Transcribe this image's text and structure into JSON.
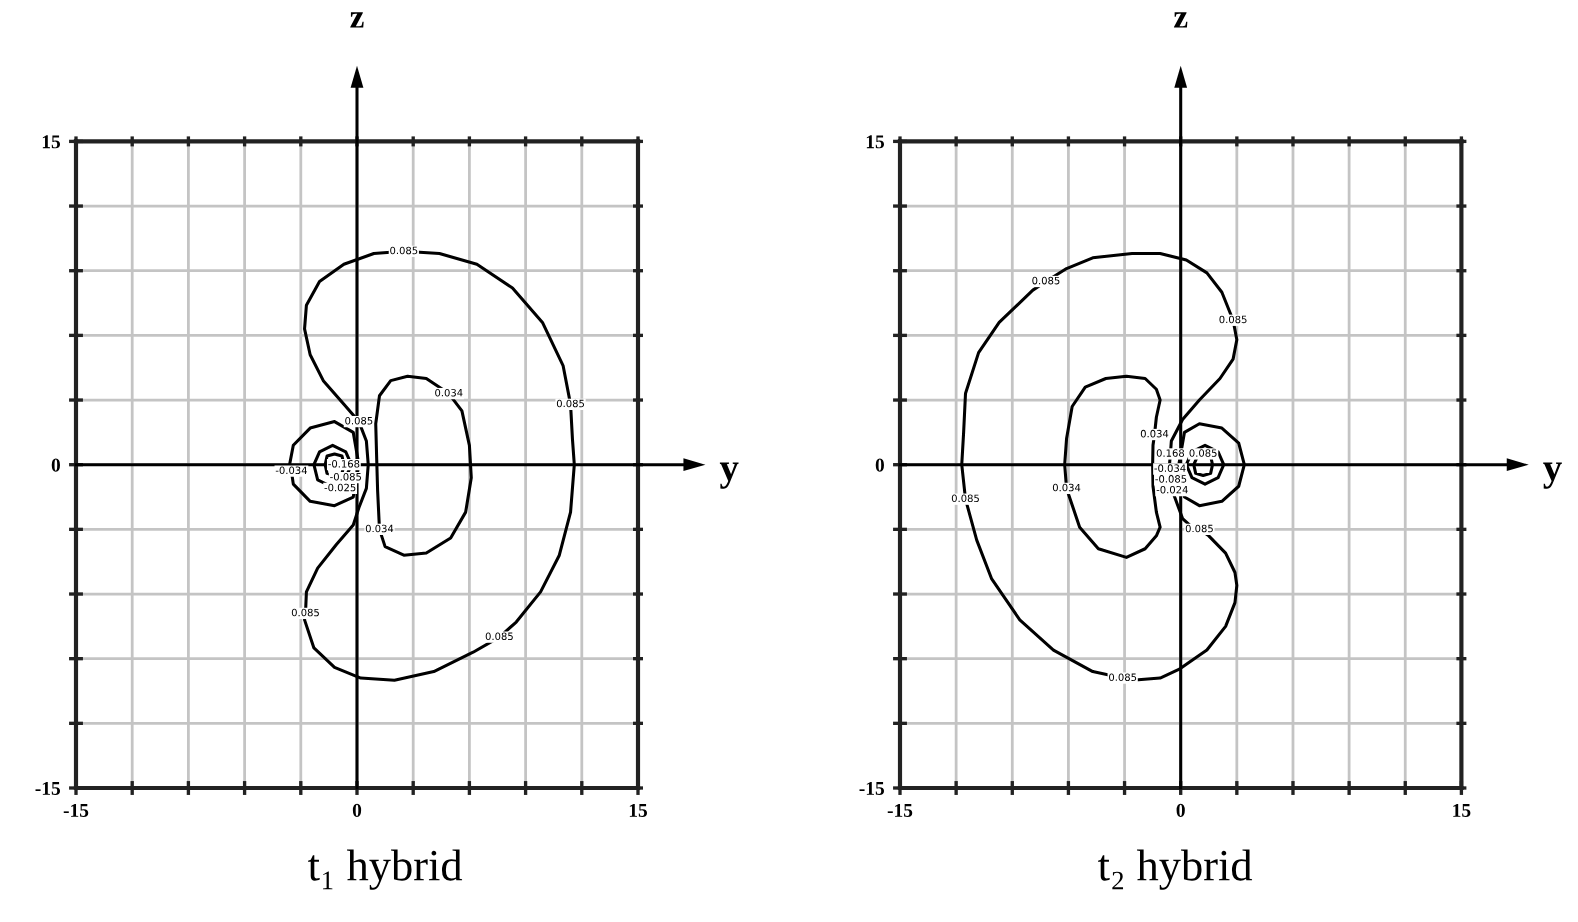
{
  "chart_data": [
    {
      "type": "line",
      "title": "t₁ hybrid",
      "xlabel": "y",
      "ylabel": "z",
      "xlim": [
        -15,
        15
      ],
      "ylim": [
        -15,
        15
      ],
      "xticks": [
        -15,
        {
          "value": -12,
          "label": null
        },
        {
          "value": -9,
          "label": null
        },
        {
          "value": -6,
          "label": null
        },
        {
          "value": -3,
          "label": null
        },
        0,
        {
          "value": 3,
          "label": null
        },
        {
          "value": 6,
          "label": null
        },
        {
          "value": 9,
          "label": null
        },
        {
          "value": 12,
          "label": null
        },
        15
      ],
      "yticks": [
        -15,
        {
          "value": -12,
          "label": null
        },
        {
          "value": -9,
          "label": null
        },
        {
          "value": -6,
          "label": null
        },
        {
          "value": -3,
          "label": null
        },
        0,
        {
          "value": 3,
          "label": null
        },
        {
          "value": 6,
          "label": null
        },
        {
          "value": 9,
          "label": null
        },
        {
          "value": 12,
          "label": null
        },
        15
      ],
      "grid": true,
      "series": [
        {
          "color": "#000000",
          "x": [
            -2.8,
            -2.5,
            -1.8,
            -0.7,
            0.1,
            0.5,
            0.6,
            null,
            -2.8,
            -2.7,
            -2.0,
            -0.7,
            0.9,
            2.5,
            4.4,
            6.4,
            8.3,
            9.9,
            11.0,
            11.4,
            11.5,
            11.6,
            null,
            -2.8,
            -2.3,
            -1.2,
            0.2,
            2.0,
            4.1,
            6.2,
            7.6,
            8.5,
            9.8,
            10.8,
            11.4,
            11.6,
            null,
            -2.8,
            -2.75,
            -2.7,
            -2.1,
            -1.1,
            -0.2,
            0.1,
            0.5,
            0.6
          ],
          "values": [
            6.3,
            5.1,
            3.9,
            2.8,
            2.0,
            1.1,
            0,
            null,
            6.3,
            7.4,
            8.5,
            9.3,
            9.8,
            9.9,
            9.8,
            9.3,
            8.2,
            6.6,
            4.6,
            2.8,
            1.2,
            0,
            null,
            -7.2,
            -8.5,
            -9.4,
            -9.9,
            -10.0,
            -9.6,
            -8.7,
            -8.0,
            -7.3,
            -5.9,
            -4.2,
            -2.2,
            0,
            null,
            -7.2,
            -6.9,
            -5.9,
            -4.8,
            -3.7,
            -2.8,
            -2.0,
            -1.1,
            0
          ]
        },
        {
          "color": "#000000",
          "x": [
            1.0,
            1.2,
            1.8,
            2.7,
            3.7,
            4.9,
            5.6,
            6.0,
            6.1,
            null,
            1.0,
            1.05,
            1.1,
            1.2,
            1.5,
            2.5,
            3.7,
            5.0,
            5.8,
            6.1
          ],
          "values": [
            1.9,
            3.2,
            3.9,
            4.1,
            4.0,
            3.3,
            2.5,
            0.9,
            -0.6,
            null,
            1.9,
            0.3,
            -1.2,
            -3.0,
            -3.8,
            -4.2,
            -4.1,
            -3.4,
            -2.2,
            -0.6
          ]
        },
        {
          "color": "#000000",
          "x": [
            -3.6,
            -3.4,
            -2.5,
            -1.2,
            -0.2,
            0.1,
            null,
            -3.6,
            -3.5,
            -3.4,
            -2.5,
            -1.2,
            -0.2,
            0.1
          ],
          "values": [
            0,
            0.9,
            1.7,
            2.0,
            1.5,
            0,
            null,
            0,
            -0.3,
            -0.9,
            -1.7,
            -1.9,
            -1.5,
            0
          ]
        },
        {
          "color": "#000000",
          "x": [
            -2.3,
            -2.0,
            -1.3,
            -0.6,
            -0.3,
            null,
            -2.3,
            -2.1,
            -1.4,
            -0.9,
            -0.6,
            -0.3
          ],
          "values": [
            0,
            0.6,
            0.9,
            0.6,
            0,
            null,
            0,
            -0.7,
            -1.0,
            -1.1,
            -0.6,
            0
          ]
        },
        {
          "color": "#000000",
          "x": [
            -1.7,
            -1.6,
            -1.2,
            -0.8,
            -0.7,
            null,
            -1.7,
            -1.6,
            -1.2,
            -0.8,
            -0.7
          ],
          "values": [
            0,
            0.4,
            0.5,
            0.4,
            0,
            null,
            0,
            -0.4,
            -0.5,
            -0.4,
            0
          ]
        }
      ],
      "annotations": [
        {
          "text": "0.085",
          "x": 2.5,
          "y": 9.9
        },
        {
          "text": "0.034",
          "x": 4.9,
          "y": 3.3
        },
        {
          "text": "0.085",
          "x": 11.4,
          "y": 2.8
        },
        {
          "text": "0.085",
          "x": 0.1,
          "y": 2.0
        },
        {
          "text": "-0.034",
          "x": -3.5,
          "y": -0.3
        },
        {
          "text": "-0.168",
          "x": -0.7,
          "y": 0
        },
        {
          "text": "-0.085",
          "x": -0.6,
          "y": -0.6
        },
        {
          "text": "-0.025",
          "x": -0.9,
          "y": -1.1
        },
        {
          "text": "0.034",
          "x": 1.2,
          "y": -3.0
        },
        {
          "text": "0.085",
          "x": -2.75,
          "y": -6.9
        },
        {
          "text": "0.085",
          "x": 7.6,
          "y": -8.0
        }
      ]
    },
    {
      "type": "line",
      "title": "t₂ hybrid",
      "xlabel": "y",
      "ylabel": "z",
      "xlim": [
        -15,
        15
      ],
      "ylim": [
        -15,
        15
      ],
      "xticks": [
        -15,
        {
          "value": -12,
          "label": null
        },
        {
          "value": -9,
          "label": null
        },
        {
          "value": -6,
          "label": null
        },
        {
          "value": -3,
          "label": null
        },
        0,
        {
          "value": 3,
          "label": null
        },
        {
          "value": 6,
          "label": null
        },
        {
          "value": 9,
          "label": null
        },
        {
          "value": 12,
          "label": null
        },
        15
      ],
      "yticks": [
        -15,
        {
          "value": -12,
          "label": null
        },
        {
          "value": -9,
          "label": null
        },
        {
          "value": -6,
          "label": null
        },
        {
          "value": -3,
          "label": null
        },
        0,
        {
          "value": 3,
          "label": null
        },
        {
          "value": 6,
          "label": null
        },
        {
          "value": 9,
          "label": null
        },
        {
          "value": 12,
          "label": null
        },
        15
      ],
      "grid": true,
      "series": [
        {
          "color": "#000000",
          "x": [
            -0.6,
            -0.55,
            -0.5,
            0.1,
            1.0,
            2.1,
            2.8,
            3.0,
            null,
            -11.7,
            -11.6,
            -11.5,
            -10.8,
            -9.7,
            -7.9,
            -7.2,
            -6.1,
            -4.7,
            -2.6,
            -1.1,
            0.3,
            1.4,
            2.2,
            2.8,
            3.0,
            null,
            -11.7,
            -11.5,
            -10.9,
            -10.1,
            -8.6,
            -6.8,
            -4.7,
            -3.1,
            -2.6,
            -1.1,
            -0.1,
            1.4,
            2.4,
            2.9,
            3.0,
            null,
            -0.6,
            -0.57,
            -0.52,
            -0.45,
            0.1,
            0.6,
            1.0,
            1.5,
            2.4,
            2.9,
            3.0
          ],
          "values": [
            0,
            0.5,
            1.1,
            2.1,
            3.0,
            4.0,
            4.9,
            5.8,
            null,
            0,
            1.5,
            3.3,
            5.2,
            6.6,
            8.1,
            8.5,
            9.1,
            9.6,
            9.8,
            9.8,
            9.5,
            8.9,
            8.0,
            6.7,
            5.8,
            null,
            0,
            -1.6,
            -3.5,
            -5.3,
            -7.2,
            -8.6,
            -9.6,
            -9.9,
            -10.0,
            -9.9,
            -9.5,
            -8.6,
            -7.5,
            -6.4,
            -5.6,
            null,
            0,
            -0.2,
            -0.7,
            -1.2,
            -2.5,
            -2.9,
            -3.0,
            -3.3,
            -4.1,
            -5.0,
            -5.6
          ]
        },
        {
          "color": "#000000",
          "x": [
            -6.2,
            -6.1,
            -5.8,
            -5.1,
            -4.0,
            -2.9,
            -1.9,
            -1.3,
            -1.1,
            null,
            -1.5,
            -1.48,
            -1.4,
            -1.3,
            -1.1,
            null,
            -6.2,
            -6.1,
            -5.4,
            -4.4,
            -2.9,
            -1.9,
            -1.3,
            -1.1,
            null,
            -1.5,
            -1.48,
            -1.3,
            -1.1
          ],
          "values": [
            0,
            1.2,
            2.7,
            3.6,
            4.0,
            4.1,
            4.0,
            3.5,
            3.0,
            null,
            0,
            0.9,
            1.4,
            2.2,
            3.0,
            null,
            0,
            -1.1,
            -2.9,
            -3.9,
            -4.3,
            -3.9,
            -3.3,
            -2.9,
            null,
            0,
            -1.0,
            -2.2,
            -2.9
          ]
        },
        {
          "color": "#000000",
          "x": [
            -0.1,
            0.2,
            1.0,
            2.2,
            3.1,
            3.4,
            null,
            -0.1,
            0.2,
            1.0,
            2.2,
            3.1,
            3.4
          ],
          "values": [
            0,
            1.5,
            1.9,
            1.7,
            1.0,
            0,
            null,
            0,
            -1.5,
            -1.9,
            -1.7,
            -1.0,
            0
          ]
        },
        {
          "color": "#000000",
          "x": [
            0.3,
            0.6,
            1.3,
            2.0,
            2.3,
            null,
            0.3,
            0.6,
            1.3,
            2.0,
            2.3
          ],
          "values": [
            0,
            0.6,
            0.9,
            0.6,
            0,
            null,
            0,
            -0.6,
            -0.9,
            -0.6,
            0
          ]
        },
        {
          "color": "#000000",
          "x": [
            0.7,
            0.9,
            1.2,
            1.6,
            1.7,
            null,
            0.7,
            0.8,
            1.2,
            1.6,
            1.7
          ],
          "values": [
            0,
            0.4,
            0.5,
            0.4,
            0,
            null,
            0,
            -0.4,
            -0.5,
            -0.4,
            0
          ]
        }
      ],
      "annotations": [
        {
          "text": "0.085",
          "x": -7.2,
          "y": 8.5
        },
        {
          "text": "0.085",
          "x": 2.8,
          "y": 6.7
        },
        {
          "text": "0.034",
          "x": -1.4,
          "y": 1.4
        },
        {
          "text": "0.168",
          "x": -0.55,
          "y": 0.5
        },
        {
          "text": "0.085",
          "x": 1.2,
          "y": 0.5
        },
        {
          "text": "-0.034",
          "x": -0.57,
          "y": -0.2
        },
        {
          "text": "-0.085",
          "x": -0.52,
          "y": -0.7
        },
        {
          "text": "-0.024",
          "x": -0.45,
          "y": -1.2
        },
        {
          "text": "0.085",
          "x": -11.5,
          "y": -1.6
        },
        {
          "text": "0.034",
          "x": -6.1,
          "y": -1.1
        },
        {
          "text": "0.085",
          "x": 1.0,
          "y": -3.0
        },
        {
          "text": "0.085",
          "x": -3.1,
          "y": -9.9
        }
      ]
    }
  ]
}
